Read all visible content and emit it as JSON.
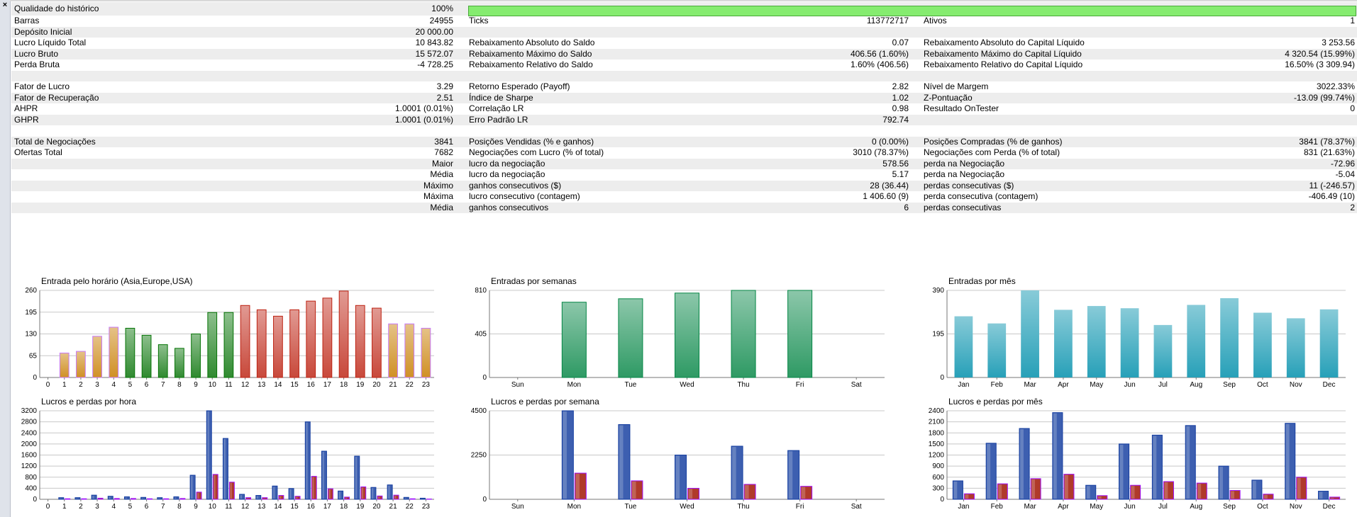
{
  "window": {
    "close_label": "×"
  },
  "history_quality": {
    "label": "Qualidade do histórico",
    "value": "100%",
    "fill_percent": 100
  },
  "stats_rows": [
    {
      "c1": [
        "Barras",
        "24955"
      ],
      "c2": [
        "Ticks",
        "113772717"
      ],
      "c3": [
        "Ativos",
        "1"
      ]
    },
    {
      "c1": [
        "Depósito Inicial",
        "20 000.00"
      ],
      "c2": [
        "",
        ""
      ],
      "c3": [
        "",
        ""
      ]
    },
    {
      "c1": [
        "Lucro Líquido Total",
        "10 843.82"
      ],
      "c2": [
        "Rebaixamento Absoluto do Saldo",
        "0.07"
      ],
      "c3": [
        "Rebaixamento Absoluto do Capital Líquido",
        "3 253.56"
      ]
    },
    {
      "c1": [
        "Lucro Bruto",
        "15 572.07"
      ],
      "c2": [
        "Rebaixamento Máximo do Saldo",
        "406.56 (1.60%)"
      ],
      "c3": [
        "Rebaixamento Máximo do Capital Líquido",
        "4 320.54 (15.99%)"
      ]
    },
    {
      "c1": [
        "Perda Bruta",
        "-4 728.25"
      ],
      "c2": [
        "Rebaixamento Relativo do Saldo",
        "1.60% (406.56)"
      ],
      "c3": [
        "Rebaixamento Relativo do Capital Líquido",
        "16.50% (3 309.94)"
      ]
    },
    {
      "c1": [
        "",
        ""
      ],
      "c2": [
        "",
        ""
      ],
      "c3": [
        "",
        ""
      ]
    },
    {
      "c1": [
        "Fator de Lucro",
        "3.29"
      ],
      "c2": [
        "Retorno Esperado (Payoff)",
        "2.82"
      ],
      "c3": [
        "Nível de Margem",
        "3022.33%"
      ]
    },
    {
      "c1": [
        "Fator de Recuperação",
        "2.51"
      ],
      "c2": [
        "Índice de Sharpe",
        "1.02"
      ],
      "c3": [
        "Z-Pontuação",
        "-13.09 (99.74%)"
      ]
    },
    {
      "c1": [
        "AHPR",
        "1.0001 (0.01%)"
      ],
      "c2": [
        "Correlação LR",
        "0.98"
      ],
      "c3": [
        "Resultado OnTester",
        "0"
      ]
    },
    {
      "c1": [
        "GHPR",
        "1.0001 (0.01%)"
      ],
      "c2": [
        "Erro Padrão LR",
        "792.74"
      ],
      "c3": [
        "",
        ""
      ]
    },
    {
      "c1": [
        "",
        ""
      ],
      "c2": [
        "",
        ""
      ],
      "c3": [
        "",
        ""
      ]
    },
    {
      "c1": [
        "Total de Negociações",
        "3841"
      ],
      "c2": [
        "Posições Vendidas (% e ganhos)",
        "0 (0.00%)"
      ],
      "c3": [
        "Posições Compradas (% de ganhos)",
        "3841 (78.37%)"
      ]
    },
    {
      "c1": [
        "Ofertas Total",
        "7682"
      ],
      "c2": [
        "Negociações com Lucro (% of total)",
        "3010 (78.37%)"
      ],
      "c3": [
        "Negociações com Perda (% of total)",
        "831 (21.63%)"
      ]
    },
    {
      "c1": [
        "",
        "Maior"
      ],
      "c2": [
        "lucro da negociação",
        "578.56"
      ],
      "c3": [
        "perda na Negociação",
        "-72.96"
      ]
    },
    {
      "c1": [
        "",
        "Média"
      ],
      "c2": [
        "lucro da negociação",
        "5.17"
      ],
      "c3": [
        "perda na Negociação",
        "-5.04"
      ]
    },
    {
      "c1": [
        "",
        "Máximo"
      ],
      "c2": [
        "ganhos consecutivos ($)",
        "28 (36.44)"
      ],
      "c3": [
        "perdas consecutivas ($)",
        "11 (-246.57)"
      ]
    },
    {
      "c1": [
        "",
        "Máxima"
      ],
      "c2": [
        "lucro consecutivo (contagem)",
        "1 406.60 (9)"
      ],
      "c3": [
        "perda consecutiva (contagem)",
        "-406.49 (10)"
      ]
    },
    {
      "c1": [
        "",
        "Média"
      ],
      "c2": [
        "ganhos consecutivos",
        "6"
      ],
      "c3": [
        "perdas consecutivas",
        "2"
      ]
    },
    {
      "c1": [
        "",
        ""
      ],
      "c2": [
        "",
        ""
      ],
      "c3": [
        "",
        ""
      ]
    }
  ],
  "chart_data": [
    {
      "type": "bar",
      "title": "Entrada pelo horário (Asia,Europe,USA)",
      "categories": [
        "0",
        "1",
        "2",
        "3",
        "4",
        "5",
        "6",
        "7",
        "8",
        "9",
        "10",
        "11",
        "12",
        "13",
        "14",
        "15",
        "16",
        "17",
        "18",
        "19",
        "20",
        "21",
        "22",
        "23"
      ],
      "values": [
        0,
        73,
        78,
        123,
        150,
        147,
        126,
        98,
        87,
        130,
        194,
        194,
        215,
        202,
        183,
        202,
        228,
        237,
        258,
        215,
        207,
        160,
        160,
        147
      ],
      "ylim": [
        0,
        260
      ],
      "yticks": [
        "0",
        "65",
        "130",
        "195",
        "260"
      ],
      "colors": [
        "#d09025",
        "#d09025",
        "#d09025",
        "#d09025",
        "#d09025",
        "#2f8a2f",
        "#2f8a2f",
        "#2f8a2f",
        "#2f8a2f",
        "#2f8a2f",
        "#2f8a2f",
        "#2f8a2f",
        "#c8483a",
        "#c8483a",
        "#c8483a",
        "#c8483a",
        "#c8483a",
        "#c8483a",
        "#c8483a",
        "#c8483a",
        "#c8483a",
        "#d09025",
        "#d09025",
        "#d09025"
      ]
    },
    {
      "type": "bar",
      "title": "Entradas por semanas",
      "categories": [
        "Sun",
        "Mon",
        "Tue",
        "Wed",
        "Thu",
        "Fri",
        "Sat"
      ],
      "values": [
        0,
        700,
        732,
        785,
        810,
        810,
        0
      ],
      "ylim": [
        0,
        810
      ],
      "yticks": [
        "0",
        "405",
        "810"
      ],
      "color": "#2e9a64"
    },
    {
      "type": "bar",
      "title": "Entradas por mês",
      "categories": [
        "Jan",
        "Feb",
        "Mar",
        "Apr",
        "May",
        "Jun",
        "Jul",
        "Aug",
        "Sep",
        "Oct",
        "Nov",
        "Dec"
      ],
      "values": [
        274,
        242,
        390,
        303,
        320,
        310,
        235,
        325,
        355,
        290,
        265,
        305
      ],
      "ylim": [
        0,
        390
      ],
      "yticks": [
        "0",
        "195",
        "390"
      ],
      "color": "#27a0b8"
    },
    {
      "type": "bar",
      "title": "Lucros e perdas por hora",
      "categories": [
        "0",
        "1",
        "2",
        "3",
        "4",
        "5",
        "6",
        "7",
        "8",
        "9",
        "10",
        "11",
        "12",
        "13",
        "14",
        "15",
        "16",
        "17",
        "18",
        "19",
        "20",
        "21",
        "22",
        "23"
      ],
      "series": [
        {
          "values": [
            0,
            60,
            60,
            150,
            110,
            90,
            70,
            60,
            90,
            870,
            3200,
            2200,
            180,
            140,
            480,
            390,
            2800,
            1740,
            300,
            1560,
            430,
            520,
            70,
            40
          ]
        },
        {
          "values": [
            0,
            20,
            20,
            40,
            30,
            30,
            20,
            20,
            30,
            260,
            900,
            620,
            60,
            60,
            140,
            110,
            830,
            380,
            80,
            450,
            120,
            150,
            20,
            10
          ]
        }
      ],
      "ylim": [
        0,
        3200
      ],
      "yticks": [
        "0",
        "400",
        "800",
        "1200",
        "1600",
        "2000",
        "2400",
        "2800",
        "3200"
      ],
      "colors": [
        "#3d5fb0",
        "#b03a2a"
      ]
    },
    {
      "type": "bar",
      "title": "Lucros e perdas por semana",
      "categories": [
        "Sun",
        "Mon",
        "Tue",
        "Wed",
        "Thu",
        "Fri",
        "Sat"
      ],
      "series": [
        {
          "values": [
            0,
            4500,
            3800,
            2250,
            2700,
            2480,
            0
          ]
        },
        {
          "values": [
            0,
            1330,
            940,
            560,
            760,
            660,
            0
          ]
        }
      ],
      "ylim": [
        0,
        4500
      ],
      "yticks": [
        "0",
        "2250",
        "4500"
      ],
      "colors": [
        "#3d5fb0",
        "#b03a2a"
      ]
    },
    {
      "type": "bar",
      "title": "Lucros e perdas por mês",
      "categories": [
        "Jan",
        "Feb",
        "Mar",
        "Apr",
        "May",
        "Jun",
        "Jul",
        "Aug",
        "Sep",
        "Oct",
        "Nov",
        "Dec"
      ],
      "series": [
        {
          "values": [
            500,
            1520,
            1920,
            2350,
            380,
            1500,
            1740,
            2000,
            900,
            520,
            2060,
            220
          ]
        },
        {
          "values": [
            150,
            420,
            560,
            680,
            100,
            380,
            480,
            440,
            240,
            140,
            600,
            60
          ]
        }
      ],
      "ylim": [
        0,
        2400
      ],
      "yticks": [
        "0",
        "300",
        "600",
        "900",
        "1200",
        "1500",
        "1800",
        "2100",
        "2400"
      ],
      "colors": [
        "#3d5fb0",
        "#b03a2a"
      ]
    }
  ]
}
